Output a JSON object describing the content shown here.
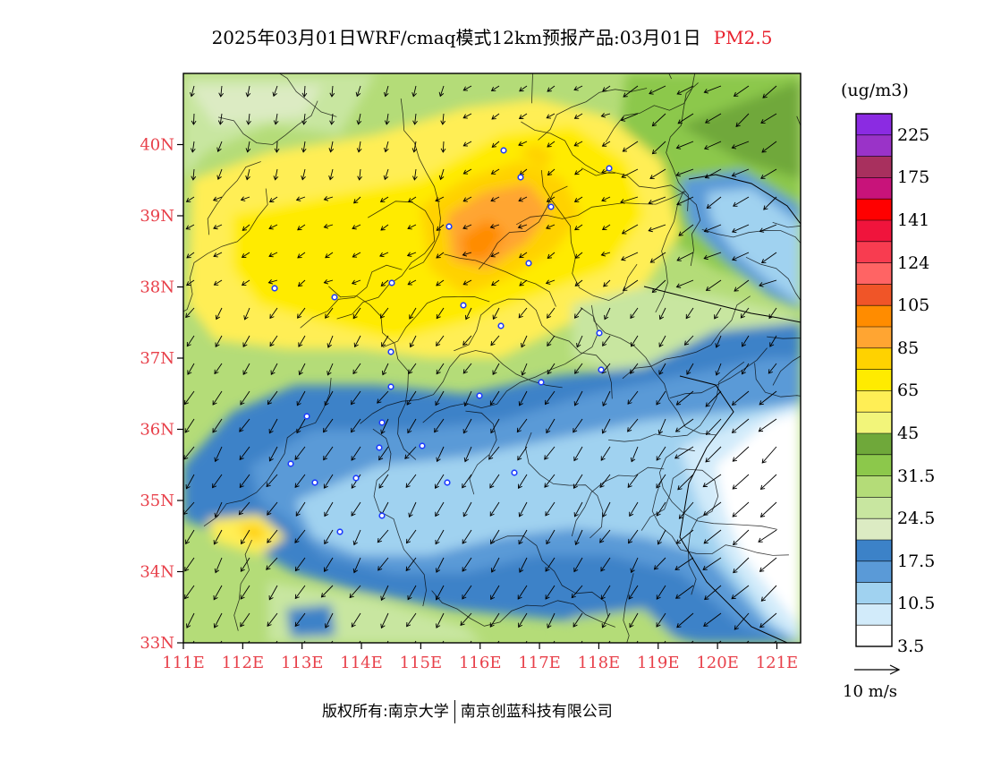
{
  "title": {
    "main": "2025年03月01日WRF/cmaq模式12km预报产品:03月01日",
    "variable": "PM2.5"
  },
  "map": {
    "lat_labels": [
      "40N",
      "39N",
      "38N",
      "37N",
      "36N",
      "35N",
      "34N",
      "33N"
    ],
    "lon_labels": [
      "111E",
      "112E",
      "113E",
      "114E",
      "115E",
      "116E",
      "117E",
      "118E",
      "119E",
      "120E",
      "121E"
    ],
    "lat_range": [
      33,
      41
    ],
    "lon_range": [
      111,
      121.4
    ],
    "label_color": "#e8404a"
  },
  "colorbar": {
    "unit": "(ug/m3)",
    "labels": [
      "225",
      "175",
      "141",
      "124",
      "105",
      "85",
      "65",
      "45",
      "31.5",
      "24.5",
      "17.5",
      "10.5",
      "3.5"
    ],
    "colors": [
      "#8b2be2",
      "#9a33c8",
      "#a8305e",
      "#c8137a",
      "#ff0000",
      "#f0143c",
      "#f83c50",
      "#ff6464",
      "#f05528",
      "#ff8c00",
      "#ffa532",
      "#ffd200",
      "#ffeb00",
      "#ffee55",
      "#f2f57a",
      "#6fa83a",
      "#8cc84b",
      "#b4dc78",
      "#c8e6a0",
      "#dcebc3",
      "#3c82c8",
      "#5a9ad7",
      "#a0d2f0",
      "#d2ebfa",
      "#ffffff"
    ]
  },
  "wind_reference": {
    "label": "10 m/s"
  },
  "footer": {
    "left": "版权所有:南京大学",
    "right": "南京创蓝科技有限公司"
  }
}
